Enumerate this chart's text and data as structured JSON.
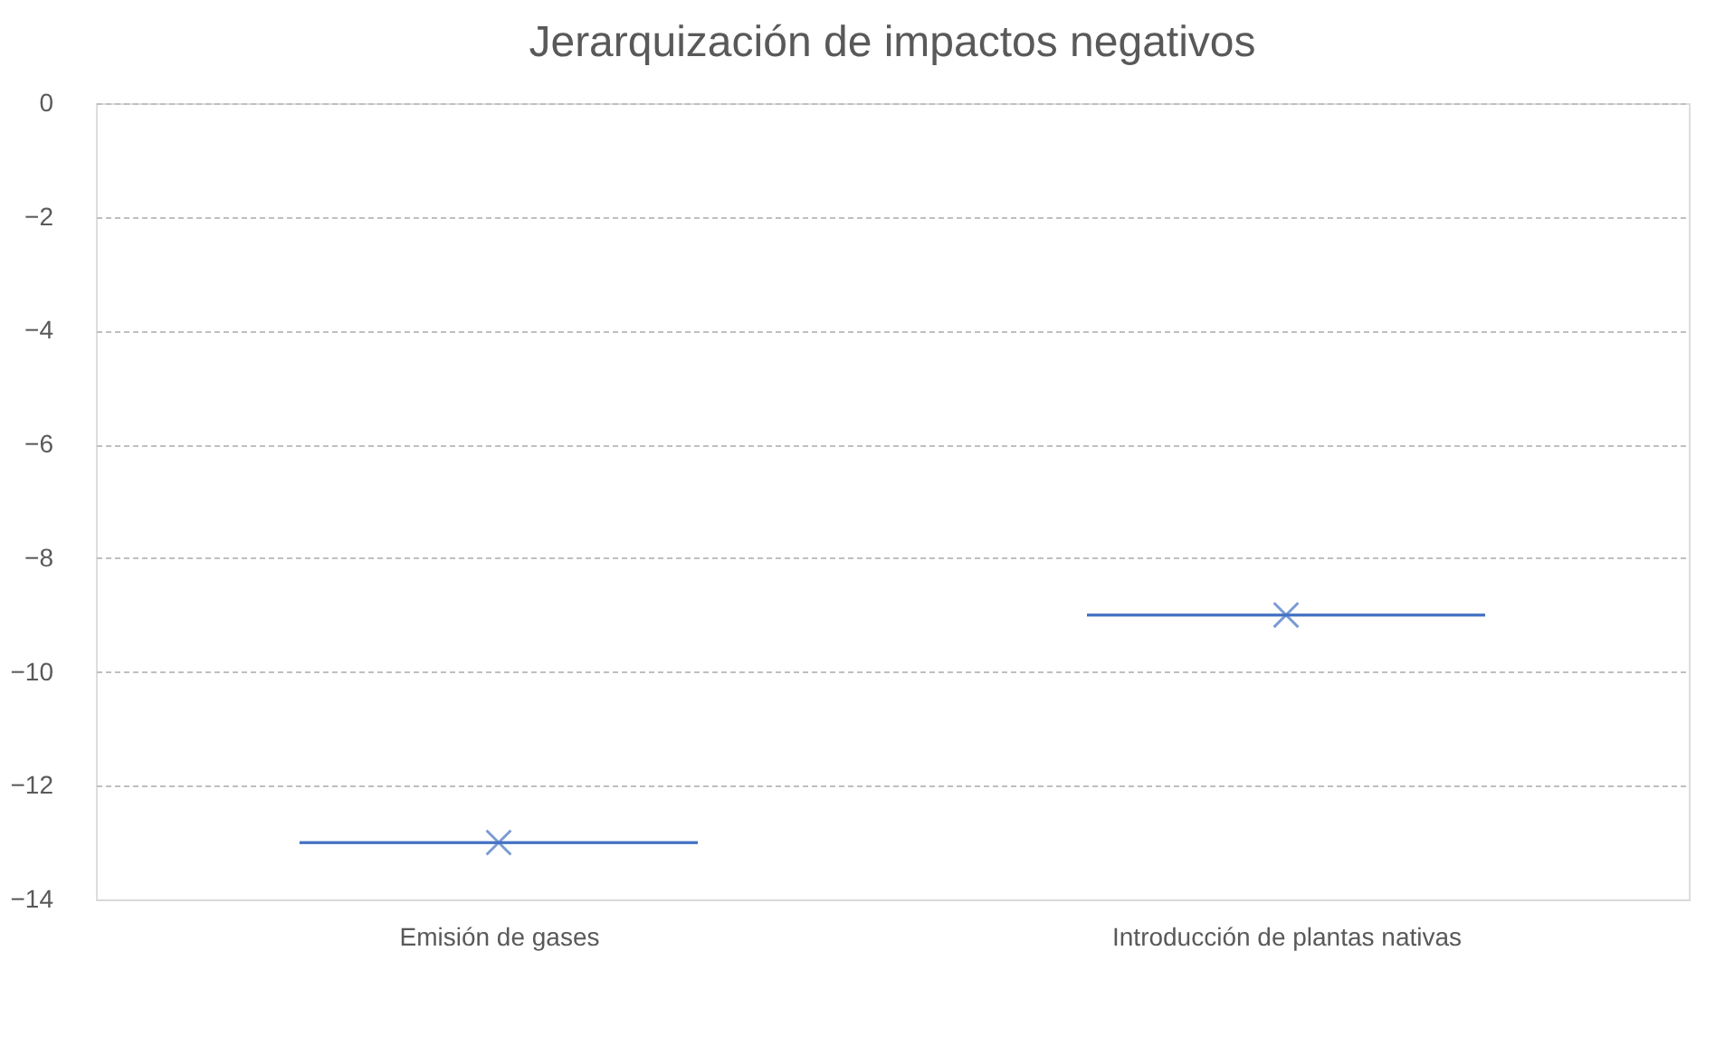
{
  "chart_data": {
    "type": "box",
    "title": "Jerarquización de impactos negativos",
    "categories": [
      "Emisión de gases",
      "Introducción de plantas nativas"
    ],
    "boxes": [
      {
        "low": -13,
        "q1": -13,
        "median": -13,
        "q3": -13,
        "high": -13,
        "mean": -13
      },
      {
        "low": -9,
        "q1": -9,
        "median": -9,
        "q3": -9,
        "high": -9,
        "mean": -9
      }
    ],
    "color": "#4472c4",
    "ylim": [
      -14,
      0
    ],
    "yticks": [
      -14,
      -12,
      -10,
      -8,
      -6,
      -4,
      -2,
      0
    ],
    "grid": "y",
    "marker": "cross"
  }
}
